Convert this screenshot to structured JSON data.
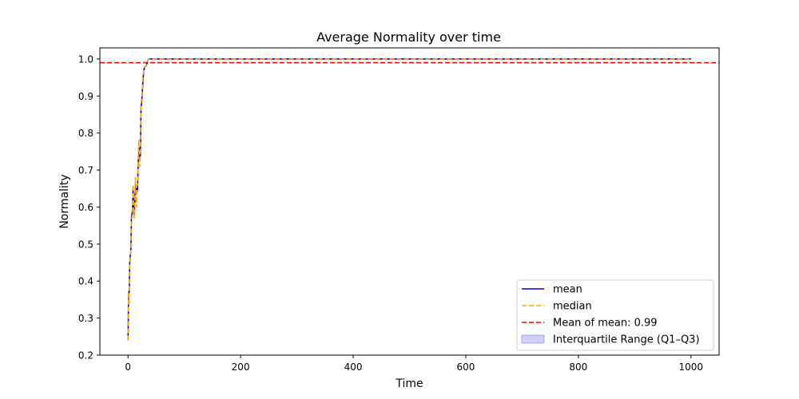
{
  "chart_data": {
    "type": "line",
    "title": "Average Normality over time",
    "xlabel": "Time",
    "ylabel": "Normality",
    "xlim": [
      -50,
      1050
    ],
    "ylim": [
      0.2,
      1.03
    ],
    "x_ticks": [
      0,
      200,
      400,
      600,
      800,
      1000
    ],
    "y_ticks": [
      0.2,
      0.3,
      0.4,
      0.5,
      0.6,
      0.7,
      0.8,
      0.9,
      1.0
    ],
    "x_tick_labels": [
      "0",
      "200",
      "400",
      "600",
      "800",
      "1000"
    ],
    "y_tick_labels": [
      "0.2",
      "0.3",
      "0.4",
      "0.5",
      "0.6",
      "0.7",
      "0.8",
      "0.9",
      "1.0"
    ],
    "grid": false,
    "legend_position": "lower-right",
    "series": [
      {
        "name": "mean",
        "color": "#0000cc",
        "style": "solid",
        "x": [
          0,
          1,
          2,
          3,
          4,
          5,
          6,
          7,
          8,
          9,
          10,
          11,
          12,
          13,
          14,
          15,
          16,
          17,
          18,
          19,
          20,
          21,
          22,
          23,
          24,
          25,
          26,
          27,
          28,
          29,
          30,
          32,
          34,
          36,
          38,
          40,
          42,
          45,
          50,
          1000
        ],
        "values": [
          0.24,
          0.37,
          0.36,
          0.45,
          0.47,
          0.48,
          0.57,
          0.58,
          0.59,
          0.65,
          0.6,
          0.58,
          0.61,
          0.65,
          0.66,
          0.65,
          0.64,
          0.65,
          0.72,
          0.74,
          0.76,
          0.73,
          0.74,
          0.87,
          0.88,
          0.9,
          0.93,
          0.95,
          0.97,
          0.975,
          0.98,
          0.98,
          0.99,
          1.0,
          1.0,
          1.0,
          1.0,
          1.0,
          1.0,
          1.0
        ]
      },
      {
        "name": "median",
        "color": "#ffa500",
        "style": "dashed",
        "x": [
          0,
          1,
          2,
          3,
          4,
          5,
          6,
          7,
          8,
          9,
          10,
          11,
          12,
          13,
          14,
          15,
          16,
          17,
          18,
          19,
          20,
          21,
          22,
          23,
          24,
          25,
          26,
          27,
          28,
          29,
          30,
          32,
          34,
          36,
          38,
          40,
          42,
          45,
          50,
          1000
        ],
        "values": [
          0.24,
          0.37,
          0.34,
          0.46,
          0.47,
          0.48,
          0.57,
          0.57,
          0.58,
          0.66,
          0.61,
          0.57,
          0.6,
          0.68,
          0.66,
          0.6,
          0.66,
          0.66,
          0.72,
          0.78,
          0.75,
          0.71,
          0.76,
          0.88,
          0.89,
          0.9,
          0.94,
          0.96,
          0.97,
          0.975,
          0.98,
          0.98,
          0.99,
          1.0,
          1.0,
          1.0,
          1.0,
          1.0,
          1.0,
          1.0
        ]
      }
    ],
    "iqr": {
      "name": "Interquartile Range (Q1–Q3)",
      "color": "#6666ff"
    },
    "reference_line": {
      "name": "Mean of mean: 0.99",
      "value": 0.99,
      "color": "#ff0000",
      "style": "dashed"
    },
    "legend": [
      "mean",
      "median",
      "Mean of mean: 0.99",
      "Interquartile Range (Q1–Q3)"
    ]
  }
}
